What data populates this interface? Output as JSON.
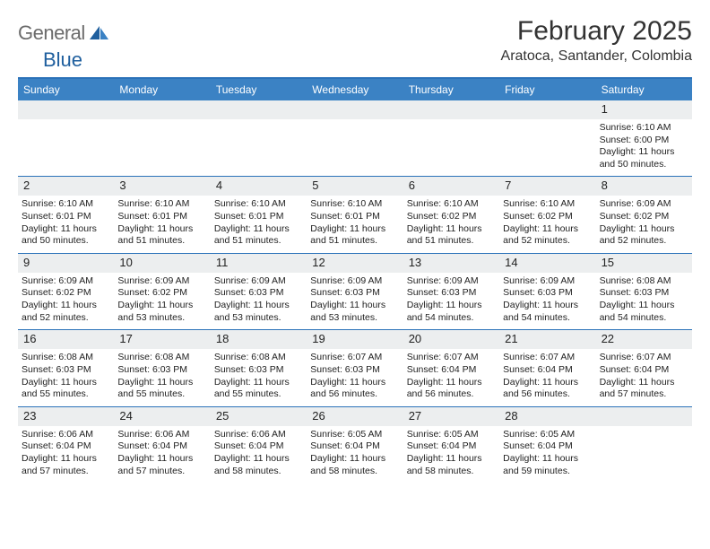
{
  "logo": {
    "text1": "General",
    "text2": "Blue"
  },
  "title": "February 2025",
  "location": "Aratoca, Santander, Colombia",
  "header_bg": "#3b82c4",
  "rule_color": "#2b72b9",
  "daynum_bg": "#eceeef",
  "day_names": [
    "Sunday",
    "Monday",
    "Tuesday",
    "Wednesday",
    "Thursday",
    "Friday",
    "Saturday"
  ],
  "weeks": [
    [
      null,
      null,
      null,
      null,
      null,
      null,
      {
        "n": "1",
        "sr": "6:10 AM",
        "ss": "6:00 PM",
        "dl": "11 hours and 50 minutes."
      }
    ],
    [
      {
        "n": "2",
        "sr": "6:10 AM",
        "ss": "6:01 PM",
        "dl": "11 hours and 50 minutes."
      },
      {
        "n": "3",
        "sr": "6:10 AM",
        "ss": "6:01 PM",
        "dl": "11 hours and 51 minutes."
      },
      {
        "n": "4",
        "sr": "6:10 AM",
        "ss": "6:01 PM",
        "dl": "11 hours and 51 minutes."
      },
      {
        "n": "5",
        "sr": "6:10 AM",
        "ss": "6:01 PM",
        "dl": "11 hours and 51 minutes."
      },
      {
        "n": "6",
        "sr": "6:10 AM",
        "ss": "6:02 PM",
        "dl": "11 hours and 51 minutes."
      },
      {
        "n": "7",
        "sr": "6:10 AM",
        "ss": "6:02 PM",
        "dl": "11 hours and 52 minutes."
      },
      {
        "n": "8",
        "sr": "6:09 AM",
        "ss": "6:02 PM",
        "dl": "11 hours and 52 minutes."
      }
    ],
    [
      {
        "n": "9",
        "sr": "6:09 AM",
        "ss": "6:02 PM",
        "dl": "11 hours and 52 minutes."
      },
      {
        "n": "10",
        "sr": "6:09 AM",
        "ss": "6:02 PM",
        "dl": "11 hours and 53 minutes."
      },
      {
        "n": "11",
        "sr": "6:09 AM",
        "ss": "6:03 PM",
        "dl": "11 hours and 53 minutes."
      },
      {
        "n": "12",
        "sr": "6:09 AM",
        "ss": "6:03 PM",
        "dl": "11 hours and 53 minutes."
      },
      {
        "n": "13",
        "sr": "6:09 AM",
        "ss": "6:03 PM",
        "dl": "11 hours and 54 minutes."
      },
      {
        "n": "14",
        "sr": "6:09 AM",
        "ss": "6:03 PM",
        "dl": "11 hours and 54 minutes."
      },
      {
        "n": "15",
        "sr": "6:08 AM",
        "ss": "6:03 PM",
        "dl": "11 hours and 54 minutes."
      }
    ],
    [
      {
        "n": "16",
        "sr": "6:08 AM",
        "ss": "6:03 PM",
        "dl": "11 hours and 55 minutes."
      },
      {
        "n": "17",
        "sr": "6:08 AM",
        "ss": "6:03 PM",
        "dl": "11 hours and 55 minutes."
      },
      {
        "n": "18",
        "sr": "6:08 AM",
        "ss": "6:03 PM",
        "dl": "11 hours and 55 minutes."
      },
      {
        "n": "19",
        "sr": "6:07 AM",
        "ss": "6:03 PM",
        "dl": "11 hours and 56 minutes."
      },
      {
        "n": "20",
        "sr": "6:07 AM",
        "ss": "6:04 PM",
        "dl": "11 hours and 56 minutes."
      },
      {
        "n": "21",
        "sr": "6:07 AM",
        "ss": "6:04 PM",
        "dl": "11 hours and 56 minutes."
      },
      {
        "n": "22",
        "sr": "6:07 AM",
        "ss": "6:04 PM",
        "dl": "11 hours and 57 minutes."
      }
    ],
    [
      {
        "n": "23",
        "sr": "6:06 AM",
        "ss": "6:04 PM",
        "dl": "11 hours and 57 minutes."
      },
      {
        "n": "24",
        "sr": "6:06 AM",
        "ss": "6:04 PM",
        "dl": "11 hours and 57 minutes."
      },
      {
        "n": "25",
        "sr": "6:06 AM",
        "ss": "6:04 PM",
        "dl": "11 hours and 58 minutes."
      },
      {
        "n": "26",
        "sr": "6:05 AM",
        "ss": "6:04 PM",
        "dl": "11 hours and 58 minutes."
      },
      {
        "n": "27",
        "sr": "6:05 AM",
        "ss": "6:04 PM",
        "dl": "11 hours and 58 minutes."
      },
      {
        "n": "28",
        "sr": "6:05 AM",
        "ss": "6:04 PM",
        "dl": "11 hours and 59 minutes."
      },
      null
    ]
  ],
  "labels": {
    "sunrise": "Sunrise:",
    "sunset": "Sunset:",
    "daylight": "Daylight:"
  }
}
